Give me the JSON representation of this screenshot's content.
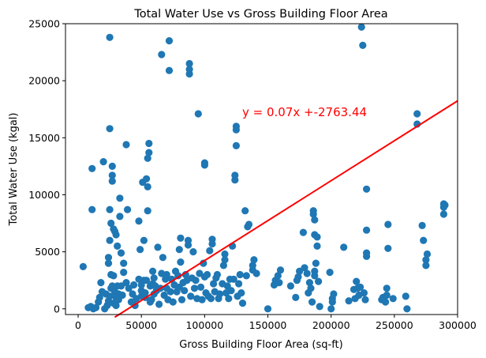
{
  "chart_data": {
    "type": "scatter",
    "title": "Total Water Use vs Gross Building Floor Area",
    "xlabel": "Gross Building Floor Area (sq-ft)",
    "ylabel": "Total Water Use (kgal)",
    "xlim": [
      -10000,
      300000
    ],
    "ylim": [
      -500,
      25000
    ],
    "xticks": [
      0,
      50000,
      100000,
      150000,
      200000,
      250000,
      300000
    ],
    "xtick_labels": [
      "0",
      "50000",
      "100000",
      "150000",
      "200000",
      "250000",
      "300000"
    ],
    "yticks": [
      0,
      5000,
      10000,
      15000,
      20000,
      25000
    ],
    "ytick_labels": [
      "0",
      "5000",
      "10000",
      "15000",
      "20000",
      "25000"
    ],
    "grid": false,
    "colors": {
      "points": "#1f77b4",
      "regression": "#ff0000"
    },
    "regression": {
      "slope": 0.07,
      "intercept": -2763.44,
      "x_range": [
        29000,
        300000
      ],
      "equation": "y = 0.07x +-2763.44"
    },
    "points": [
      [
        4000,
        3700
      ],
      [
        8000,
        100
      ],
      [
        10000,
        200
      ],
      [
        11000,
        8700
      ],
      [
        11000,
        12300
      ],
      [
        12000,
        0
      ],
      [
        14000,
        100
      ],
      [
        16000,
        600
      ],
      [
        17000,
        1000
      ],
      [
        18000,
        2300
      ],
      [
        19000,
        1500
      ],
      [
        20000,
        12900
      ],
      [
        21000,
        0
      ],
      [
        22000,
        1300
      ],
      [
        23000,
        300
      ],
      [
        24000,
        700
      ],
      [
        24000,
        4000
      ],
      [
        24000,
        4500
      ],
      [
        25000,
        1100
      ],
      [
        25000,
        6000
      ],
      [
        25000,
        8700
      ],
      [
        25000,
        15800
      ],
      [
        25000,
        23800
      ],
      [
        26000,
        1800
      ],
      [
        26000,
        3000
      ],
      [
        26000,
        7500
      ],
      [
        27000,
        2000
      ],
      [
        27000,
        11200
      ],
      [
        27000,
        11700
      ],
      [
        27000,
        12500
      ],
      [
        28000,
        500
      ],
      [
        28000,
        2900
      ],
      [
        28000,
        7000
      ],
      [
        29000,
        1500
      ],
      [
        29000,
        6800
      ],
      [
        30000,
        300
      ],
      [
        30000,
        1000
      ],
      [
        30000,
        6500
      ],
      [
        31000,
        2000
      ],
      [
        31000,
        5500
      ],
      [
        32000,
        800
      ],
      [
        32000,
        1300
      ],
      [
        33000,
        8100
      ],
      [
        33000,
        9700
      ],
      [
        34000,
        2000
      ],
      [
        34000,
        4900
      ],
      [
        35000,
        1200
      ],
      [
        36000,
        3200
      ],
      [
        36000,
        4000
      ],
      [
        38000,
        2300
      ],
      [
        38000,
        14400
      ],
      [
        39000,
        8700
      ],
      [
        40000,
        1800
      ],
      [
        42000,
        600
      ],
      [
        43000,
        1300
      ],
      [
        44000,
        2100
      ],
      [
        45000,
        300
      ],
      [
        46000,
        900
      ],
      [
        48000,
        7700
      ],
      [
        48000,
        2600
      ],
      [
        49000,
        5200
      ],
      [
        50000,
        1100
      ],
      [
        50000,
        1600
      ],
      [
        50000,
        2100
      ],
      [
        51000,
        11100
      ],
      [
        52000,
        2500
      ],
      [
        52000,
        6000
      ],
      [
        53000,
        1000
      ],
      [
        53000,
        1400
      ],
      [
        54000,
        2500
      ],
      [
        54000,
        11400
      ],
      [
        55000,
        8600
      ],
      [
        55000,
        10700
      ],
      [
        55000,
        13200
      ],
      [
        56000,
        13700
      ],
      [
        56000,
        14500
      ],
      [
        57000,
        600
      ],
      [
        57000,
        2000
      ],
      [
        58000,
        800
      ],
      [
        59000,
        2200
      ],
      [
        59000,
        3300
      ],
      [
        60000,
        1300
      ],
      [
        60000,
        2700
      ],
      [
        61000,
        2000
      ],
      [
        62000,
        1600
      ],
      [
        63000,
        5400
      ],
      [
        64000,
        400
      ],
      [
        65000,
        1800
      ],
      [
        66000,
        3100
      ],
      [
        66000,
        22300
      ],
      [
        67000,
        4500
      ],
      [
        68000,
        1200
      ],
      [
        69000,
        2600
      ],
      [
        70000,
        1800
      ],
      [
        70000,
        3000
      ],
      [
        71000,
        800
      ],
      [
        72000,
        20900
      ],
      [
        72000,
        23500
      ],
      [
        73000,
        1500
      ],
      [
        74000,
        2600
      ],
      [
        75000,
        600
      ],
      [
        76000,
        2100
      ],
      [
        77000,
        3300
      ],
      [
        78000,
        1500
      ],
      [
        79000,
        2900
      ],
      [
        80000,
        1900
      ],
      [
        80000,
        5200
      ],
      [
        81000,
        4100
      ],
      [
        81000,
        6200
      ],
      [
        82000,
        800
      ],
      [
        83000,
        2300
      ],
      [
        84000,
        1600
      ],
      [
        85000,
        3000
      ],
      [
        86000,
        2500
      ],
      [
        87000,
        5600
      ],
      [
        87000,
        6000
      ],
      [
        88000,
        20600
      ],
      [
        88000,
        21000
      ],
      [
        88000,
        21500
      ],
      [
        89000,
        1100
      ],
      [
        90000,
        2700
      ],
      [
        91000,
        5000
      ],
      [
        92000,
        1800
      ],
      [
        93000,
        2500
      ],
      [
        94000,
        900
      ],
      [
        95000,
        17100
      ],
      [
        96000,
        3100
      ],
      [
        97000,
        1900
      ],
      [
        98000,
        800
      ],
      [
        99000,
        4000
      ],
      [
        100000,
        2800
      ],
      [
        100000,
        12600
      ],
      [
        100000,
        12800
      ],
      [
        101000,
        1400
      ],
      [
        102000,
        3000
      ],
      [
        103000,
        1100
      ],
      [
        104000,
        5100
      ],
      [
        105000,
        900
      ],
      [
        106000,
        5700
      ],
      [
        106000,
        6100
      ],
      [
        107000,
        2200
      ],
      [
        108000,
        1500
      ],
      [
        109000,
        2700
      ],
      [
        110000,
        3000
      ],
      [
        111000,
        900
      ],
      [
        112000,
        1300
      ],
      [
        114000,
        2200
      ],
      [
        115000,
        3800
      ],
      [
        116000,
        4300
      ],
      [
        116000,
        4800
      ],
      [
        117000,
        1400
      ],
      [
        118000,
        2000
      ],
      [
        119000,
        900
      ],
      [
        120000,
        2600
      ],
      [
        121000,
        1600
      ],
      [
        122000,
        5500
      ],
      [
        123000,
        2600
      ],
      [
        124000,
        11300
      ],
      [
        124000,
        11700
      ],
      [
        125000,
        14300
      ],
      [
        125000,
        15700
      ],
      [
        125000,
        16000
      ],
      [
        126000,
        1100
      ],
      [
        127000,
        2200
      ],
      [
        128000,
        3000
      ],
      [
        129000,
        1400
      ],
      [
        130000,
        500
      ],
      [
        132000,
        8600
      ],
      [
        133000,
        2900
      ],
      [
        134000,
        7200
      ],
      [
        135000,
        7400
      ],
      [
        138000,
        3400
      ],
      [
        138000,
        3800
      ],
      [
        139000,
        4300
      ],
      [
        141000,
        3100
      ],
      [
        150000,
        0
      ],
      [
        155000,
        2100
      ],
      [
        156000,
        2500
      ],
      [
        158000,
        2900
      ],
      [
        159000,
        2300
      ],
      [
        160000,
        3400
      ],
      [
        168000,
        2000
      ],
      [
        172000,
        1000
      ],
      [
        173000,
        2500
      ],
      [
        174000,
        2800
      ],
      [
        175000,
        3300
      ],
      [
        178000,
        6700
      ],
      [
        179000,
        3600
      ],
      [
        181000,
        3100
      ],
      [
        182000,
        1400
      ],
      [
        183000,
        2300
      ],
      [
        184000,
        1800
      ],
      [
        185000,
        600
      ],
      [
        186000,
        8300
      ],
      [
        186000,
        8600
      ],
      [
        187000,
        2900
      ],
      [
        187000,
        3300
      ],
      [
        187000,
        7800
      ],
      [
        187000,
        6500
      ],
      [
        188000,
        4000
      ],
      [
        189000,
        6300
      ],
      [
        189000,
        5500
      ],
      [
        190000,
        2400
      ],
      [
        191000,
        200
      ],
      [
        199000,
        3200
      ],
      [
        200000,
        0
      ],
      [
        201000,
        600
      ],
      [
        201000,
        900
      ],
      [
        202000,
        1300
      ],
      [
        210000,
        5400
      ],
      [
        214000,
        700
      ],
      [
        218000,
        1700
      ],
      [
        219000,
        900
      ],
      [
        220000,
        2400
      ],
      [
        221000,
        1800
      ],
      [
        222000,
        1200
      ],
      [
        223000,
        1900
      ],
      [
        224000,
        24700
      ],
      [
        225000,
        23100
      ],
      [
        226000,
        1400
      ],
      [
        227000,
        800
      ],
      [
        228000,
        4600
      ],
      [
        228000,
        4900
      ],
      [
        228000,
        6900
      ],
      [
        228000,
        10500
      ],
      [
        240000,
        800
      ],
      [
        241000,
        1000
      ],
      [
        243000,
        600
      ],
      [
        244000,
        1200
      ],
      [
        244000,
        1800
      ],
      [
        245000,
        5300
      ],
      [
        245000,
        7400
      ],
      [
        249000,
        900
      ],
      [
        259000,
        1100
      ],
      [
        260000,
        0
      ],
      [
        268000,
        16200
      ],
      [
        268000,
        17100
      ],
      [
        272000,
        7300
      ],
      [
        273000,
        6000
      ],
      [
        275000,
        3800
      ],
      [
        275000,
        4300
      ],
      [
        276000,
        4800
      ],
      [
        289000,
        8300
      ],
      [
        289000,
        8900
      ],
      [
        289000,
        9200
      ],
      [
        290000,
        9100
      ]
    ]
  }
}
